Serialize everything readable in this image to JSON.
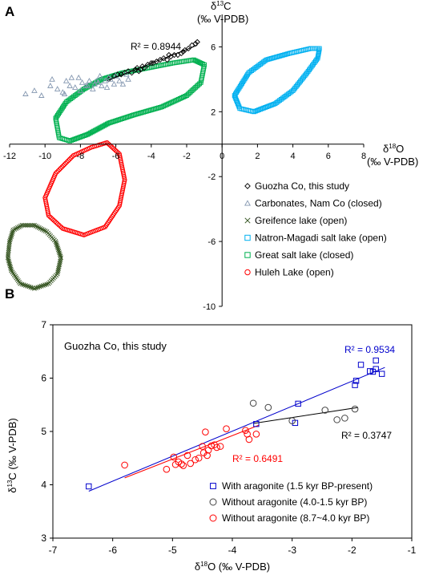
{
  "chart_data": [
    {
      "panel_label": "A",
      "type": "scatter",
      "title": "",
      "xlabel": "δ18O (‰ V-PDB)",
      "ylabel": "δ13C (‰ V-PDB)",
      "xlabel_main": "δ",
      "xlabel_sup": "18",
      "xlabel_rest": "O",
      "xlabel_unit": "(‰ V-PDB)",
      "ylabel_main": "δ",
      "ylabel_sup": "13",
      "ylabel_rest": "C",
      "ylabel_unit": "(‰ V-PDB)",
      "xlim": [
        -12,
        8
      ],
      "ylim": [
        -10,
        8
      ],
      "xticks": [
        -12,
        -10,
        -8,
        -6,
        -4,
        -2,
        0,
        2,
        4,
        6,
        8
      ],
      "yticks": [
        -10,
        -6,
        -2,
        2,
        6
      ],
      "grid": false,
      "legend_position": "right",
      "annotation": "R² = 0.8944",
      "series": [
        {
          "name": "Guozha Co, this study",
          "marker": "diamond",
          "color": "#000000",
          "x": [
            -6.4,
            -6.1,
            -5.9,
            -5.7,
            -5.5,
            -5.3,
            -5.1,
            -4.9,
            -4.8,
            -4.6,
            -4.5,
            -4.4,
            -4.2,
            -4.0,
            -3.9,
            -3.7,
            -3.5,
            -3.3,
            -3.1,
            -2.9,
            -2.7,
            -2.5,
            -2.3,
            -2.1,
            -1.9,
            -1.7,
            -1.5,
            -1.4,
            -4.7,
            -3.0,
            -2.2
          ],
          "y": [
            4.0,
            4.2,
            4.3,
            4.3,
            4.4,
            4.5,
            4.4,
            4.6,
            4.7,
            4.6,
            4.8,
            4.7,
            4.9,
            5.0,
            5.0,
            5.1,
            5.2,
            5.3,
            5.2,
            5.4,
            5.5,
            5.5,
            5.6,
            5.8,
            5.9,
            6.1,
            6.2,
            6.3,
            4.5,
            5.5,
            5.7
          ]
        },
        {
          "name": "Carbonates, Nam Co (closed)",
          "marker": "triangle",
          "color": "#8497b0",
          "x": [
            -11.1,
            -10.6,
            -10.2,
            -9.6,
            -9.3,
            -9.0,
            -8.8,
            -8.6,
            -8.3,
            -8.1,
            -8.0,
            -7.9,
            -7.7,
            -7.5,
            -7.3,
            -7.2,
            -7.0,
            -6.9,
            -6.8,
            -6.6,
            -6.5,
            -6.3,
            -6.1,
            -6.0,
            -5.8,
            -5.6,
            -5.4,
            -5.3,
            -8.5,
            -7.6,
            -7.1,
            -6.4,
            -9.7,
            -8.9
          ],
          "y": [
            3.1,
            3.3,
            3.0,
            4.0,
            3.4,
            3.2,
            3.9,
            3.6,
            3.5,
            4.1,
            3.3,
            3.8,
            3.6,
            3.9,
            3.4,
            3.7,
            3.8,
            4.2,
            3.6,
            3.9,
            3.5,
            4.0,
            3.7,
            4.2,
            3.9,
            3.7,
            4.3,
            4.0,
            4.1,
            3.6,
            3.9,
            4.1,
            3.6,
            3.1
          ]
        }
      ],
      "regions": [
        {
          "name": "Greifence lake (open)",
          "marker": "x",
          "color": "#375623",
          "outline": [
            [
              -12.0,
              -6.0
            ],
            [
              -11.8,
              -5.3
            ],
            [
              -11.3,
              -5.0
            ],
            [
              -10.6,
              -5.0
            ],
            [
              -9.9,
              -5.4
            ],
            [
              -9.4,
              -6.0
            ],
            [
              -9.1,
              -7.0
            ],
            [
              -9.3,
              -8.0
            ],
            [
              -9.8,
              -8.6
            ],
            [
              -10.6,
              -8.9
            ],
            [
              -11.4,
              -8.6
            ],
            [
              -11.9,
              -7.8
            ],
            [
              -12.1,
              -7.0
            ]
          ]
        },
        {
          "name": "Natron-Magadi salt lake (open)",
          "marker": "square",
          "color": "#00b0f0",
          "outline": [
            [
              1.0,
              2.2
            ],
            [
              0.7,
              3.0
            ],
            [
              1.5,
              4.4
            ],
            [
              2.5,
              5.2
            ],
            [
              3.8,
              5.6
            ],
            [
              5.0,
              5.9
            ],
            [
              5.5,
              5.9
            ],
            [
              5.4,
              5.3
            ],
            [
              4.8,
              4.4
            ],
            [
              4.0,
              3.3
            ],
            [
              3.0,
              2.5
            ],
            [
              1.8,
              2.0
            ]
          ]
        },
        {
          "name": "Great salt lake (closed)",
          "marker": "square",
          "color": "#00b050",
          "outline": [
            [
              -9.2,
              0.4
            ],
            [
              -9.4,
              1.6
            ],
            [
              -8.8,
              2.6
            ],
            [
              -7.8,
              3.4
            ],
            [
              -6.8,
              4.0
            ],
            [
              -5.6,
              4.4
            ],
            [
              -4.2,
              4.7
            ],
            [
              -2.8,
              5.0
            ],
            [
              -1.6,
              5.2
            ],
            [
              -1.0,
              4.9
            ],
            [
              -1.2,
              3.8
            ],
            [
              -2.0,
              3.0
            ],
            [
              -3.4,
              2.3
            ],
            [
              -5.0,
              1.8
            ],
            [
              -6.4,
              1.3
            ],
            [
              -7.6,
              0.6
            ],
            [
              -8.6,
              0.2
            ]
          ]
        },
        {
          "name": "Huleh Lake (open)",
          "marker": "circle",
          "color": "#ff0000",
          "outline": [
            [
              -7.4,
              -0.2
            ],
            [
              -8.4,
              -0.7
            ],
            [
              -9.4,
              -1.8
            ],
            [
              -10.0,
              -3.3
            ],
            [
              -9.8,
              -4.4
            ],
            [
              -9.0,
              -5.2
            ],
            [
              -7.8,
              -5.6
            ],
            [
              -6.6,
              -5.1
            ],
            [
              -5.8,
              -3.8
            ],
            [
              -5.5,
              -2.2
            ],
            [
              -5.8,
              -0.6
            ],
            [
              -6.5,
              0.1
            ]
          ]
        }
      ]
    },
    {
      "panel_label": "B",
      "type": "scatter",
      "title": "",
      "annotation_title": "Guozha Co, this study",
      "xlabel": "δ18O (‰ V-PDB)",
      "ylabel": "δ13C (‰ V-PDB)",
      "xlabel_main": "δ",
      "xlabel_sup": "18",
      "xlabel_rest": "O (‰ V-PDB)",
      "ylabel_main": "δ",
      "ylabel_sup": "13",
      "ylabel_rest": "C (‰ V-PDB)",
      "xlim": [
        -7,
        -1
      ],
      "ylim": [
        3,
        7
      ],
      "xticks": [
        -7,
        -6,
        -5,
        -4,
        -3,
        -2,
        -1
      ],
      "yticks": [
        3,
        4,
        5,
        6,
        7
      ],
      "grid": false,
      "legend_position": "bottom-right",
      "series": [
        {
          "name": "With aragonite (1.5 kyr BP-present)",
          "marker": "square",
          "color": "#0000cc",
          "x": [
            -6.4,
            -3.6,
            -2.9,
            -2.95,
            -1.95,
            -1.93,
            -1.85,
            -1.7,
            -1.65,
            -1.6,
            -1.6,
            -1.5
          ],
          "y": [
            3.97,
            5.14,
            5.52,
            5.16,
            5.87,
            5.95,
            6.25,
            6.13,
            6.12,
            6.17,
            6.33,
            6.08
          ]
        },
        {
          "name": "Without aragonite (4.0-1.5 kyr BP)",
          "marker": "circle",
          "color": "#444444",
          "x": [
            -3.65,
            -3.4,
            -3.0,
            -2.45,
            -2.25,
            -2.12,
            -1.95
          ],
          "y": [
            5.53,
            5.45,
            5.2,
            5.4,
            5.22,
            5.25,
            5.42
          ]
        },
        {
          "name": "Without aragonite (8.7~4.0 kyr BP)",
          "marker": "circle",
          "color": "#ff0000",
          "x": [
            -5.8,
            -5.1,
            -4.98,
            -4.9,
            -4.85,
            -4.82,
            -4.75,
            -4.7,
            -4.62,
            -4.56,
            -4.5,
            -4.48,
            -4.45,
            -4.42,
            -4.4,
            -4.35,
            -4.3,
            -4.26,
            -4.2,
            -4.1,
            -3.78,
            -3.75,
            -3.72,
            -3.6,
            -4.95
          ],
          "y": [
            4.37,
            4.29,
            4.52,
            4.43,
            4.39,
            4.36,
            4.55,
            4.4,
            4.47,
            4.5,
            4.72,
            4.6,
            4.99,
            4.55,
            4.65,
            4.73,
            4.75,
            4.7,
            4.72,
            5.05,
            5.02,
            4.95,
            4.85,
            4.95,
            4.38
          ]
        }
      ],
      "trendlines": [
        {
          "series": "With aragonite (1.5 kyr BP-present)",
          "x": [
            -6.4,
            -1.45
          ],
          "y": [
            3.88,
            6.2
          ],
          "r2_label": "R² = 0.9534",
          "color": "#0000cc"
        },
        {
          "series": "Without aragonite (4.0-1.5 kyr BP)",
          "x": [
            -3.65,
            -1.9
          ],
          "y": [
            5.15,
            5.45
          ],
          "r2_label": "R² = 0.3747",
          "color": "#000000"
        },
        {
          "series": "Without aragonite (8.7~4.0 kyr BP)",
          "x": [
            -5.8,
            -3.55
          ],
          "y": [
            4.13,
            5.12
          ],
          "r2_label": "R² = 0.6491",
          "color": "#ff0000"
        }
      ]
    }
  ]
}
